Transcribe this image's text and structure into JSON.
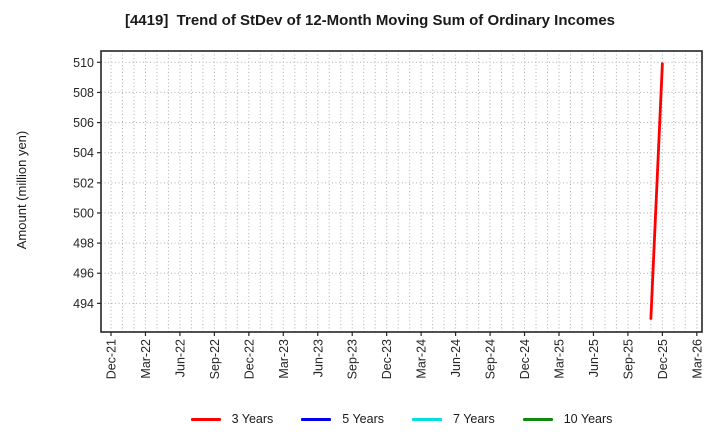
{
  "chart": {
    "title": "[4419]  Trend of StDev of 12-Month Moving Sum of Ordinary Incomes",
    "ylabel": "Amount (million yen)"
  },
  "chart_data": {
    "type": "line",
    "title": "[4419]  Trend of StDev of 12-Month Moving Sum of Ordinary Incomes",
    "xlabel": "",
    "ylabel": "Amount (million yen)",
    "x_tick_labels": [
      "Dec-21",
      "Mar-22",
      "Jun-22",
      "Sep-22",
      "Dec-22",
      "Mar-23",
      "Jun-23",
      "Sep-23",
      "Dec-23",
      "Mar-24",
      "Jun-24",
      "Sep-24",
      "Dec-24",
      "Mar-25",
      "Jun-25",
      "Sep-25",
      "Dec-25",
      "Mar-26"
    ],
    "months_per_labeled_tick": 3,
    "x_total_months": 51,
    "y_ticks": [
      494,
      496,
      498,
      500,
      502,
      504,
      506,
      508,
      510
    ],
    "ylim": [
      492.1,
      510.75
    ],
    "grid": {
      "style": "dotted",
      "vertical": "monthly",
      "horizontal": "every 2 units",
      "color": "#b0b0b0"
    },
    "legend_position": "bottom-center",
    "series": [
      {
        "name": "3 Years",
        "color": "#ff0000",
        "points": [
          {
            "x_label": "Nov-25",
            "x_month": 47,
            "y": 493.0
          },
          {
            "x_label": "Dec-25",
            "x_month": 48,
            "y": 509.9
          }
        ]
      },
      {
        "name": "5 Years",
        "color": "#0000ee",
        "points": []
      },
      {
        "name": "7 Years",
        "color": "#00e0e0",
        "points": []
      },
      {
        "name": "10 Years",
        "color": "#0f8a0f",
        "points": []
      }
    ],
    "frame_color": "#262626",
    "tick_label_color": "#262626"
  }
}
